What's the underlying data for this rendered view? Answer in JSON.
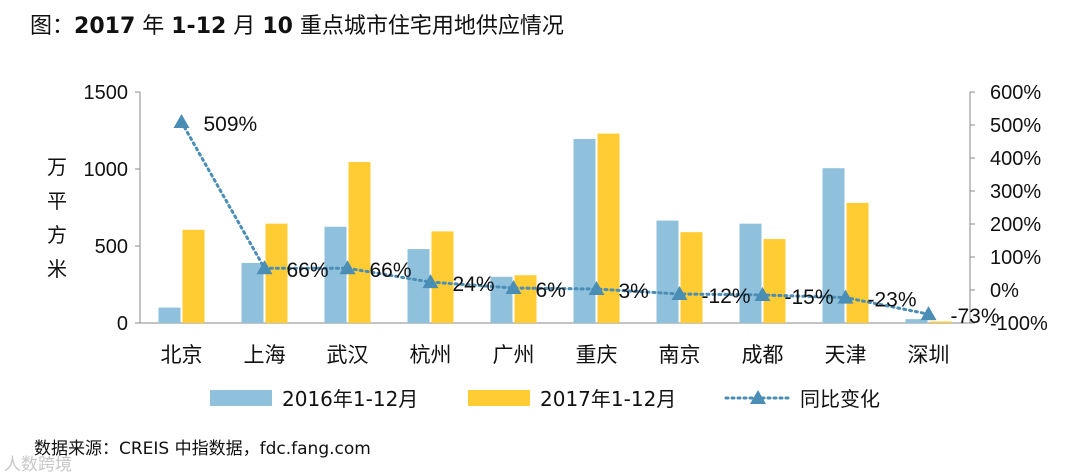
{
  "title": {
    "prefix": "图：",
    "year": "2017",
    "mid1": " 年 ",
    "period": "1-12",
    "mid2": " 月 ",
    "count": "10",
    "suffix": " 重点城市住宅用地供应情况"
  },
  "unit_label": "万平方米",
  "source": "数据来源：CREIS 中指数据，fdc.fang.com",
  "watermark": "人数跨境",
  "colors": {
    "series2016": "#8FC0DC",
    "series2017": "#FFCC33",
    "yoy": "#4A8DB5",
    "axis": "#888888"
  },
  "chart_data": {
    "type": "bar",
    "categories": [
      "北京",
      "上海",
      "武汉",
      "杭州",
      "广州",
      "重庆",
      "南京",
      "成都",
      "天津",
      "深圳"
    ],
    "series": [
      {
        "name": "2016年1-12月",
        "values": [
          100,
          390,
          625,
          480,
          300,
          1195,
          665,
          645,
          1005,
          25
        ]
      },
      {
        "name": "2017年1-12月",
        "values": [
          605,
          645,
          1045,
          595,
          310,
          1230,
          590,
          545,
          780,
          10
        ]
      }
    ],
    "line_series": {
      "name": "同比变化",
      "values": [
        509,
        66,
        66,
        24,
        6,
        3,
        -12,
        -15,
        -23,
        -73
      ],
      "labels": [
        "509%",
        "66%",
        "66%",
        "24%",
        "6%",
        "3%",
        "-12%",
        "-15%",
        "-23%",
        "-73%"
      ]
    },
    "ylim": [
      0,
      1500
    ],
    "yticks": [
      "0",
      "500",
      "1000",
      "1500"
    ],
    "y2lim": [
      -100,
      600
    ],
    "y2ticks": [
      "-100%",
      "0%",
      "100%",
      "200%",
      "300%",
      "400%",
      "500%",
      "600%"
    ],
    "legend": [
      "2016年1-12月",
      "2017年1-12月",
      "同比变化"
    ]
  }
}
